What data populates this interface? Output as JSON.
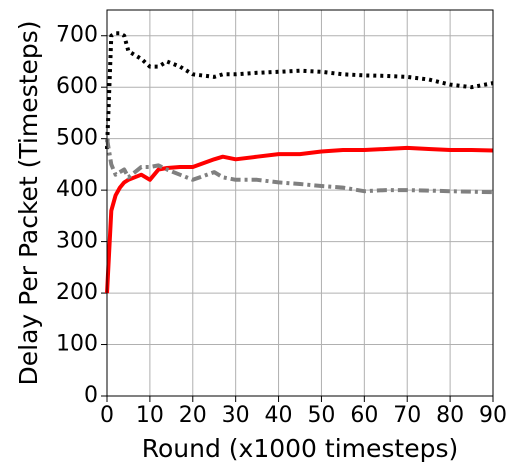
{
  "chart_data": {
    "type": "line",
    "x_label": "Round (x1000 timesteps)",
    "y_label": "Delay Per Packet (Timesteps)",
    "x": [
      0,
      1,
      2,
      3,
      4,
      5,
      8,
      10,
      12,
      14,
      17,
      20,
      25,
      27,
      30,
      35,
      40,
      45,
      50,
      55,
      60,
      65,
      70,
      75,
      80,
      85,
      90
    ],
    "series": [
      {
        "color": "#ff0000",
        "linestyle": "solid",
        "values": [
          200,
          360,
          390,
          405,
          415,
          420,
          430,
          420,
          440,
          443,
          445,
          445,
          460,
          465,
          460,
          465,
          470,
          470,
          475,
          478,
          478,
          480,
          482,
          480,
          478,
          478,
          477
        ]
      },
      {
        "color": "#000000",
        "linestyle": "dotted",
        "values": [
          480,
          700,
          705,
          705,
          700,
          670,
          655,
          640,
          640,
          650,
          640,
          625,
          620,
          625,
          625,
          628,
          630,
          632,
          630,
          625,
          623,
          622,
          620,
          615,
          605,
          600,
          608
        ]
      },
      {
        "color": "#808080",
        "linestyle": "dashdot",
        "values": [
          500,
          450,
          430,
          435,
          440,
          425,
          445,
          445,
          448,
          440,
          430,
          420,
          435,
          425,
          420,
          420,
          415,
          412,
          408,
          405,
          398,
          400,
          400,
          399,
          398,
          397,
          396
        ]
      }
    ],
    "xlim": [
      0,
      90
    ],
    "xticks": [
      0,
      10,
      20,
      30,
      40,
      50,
      60,
      70,
      80,
      90
    ],
    "ylim": [
      0,
      750
    ],
    "yticks": [
      0,
      100,
      200,
      300,
      400,
      500,
      600,
      700
    ],
    "grid": true
  }
}
